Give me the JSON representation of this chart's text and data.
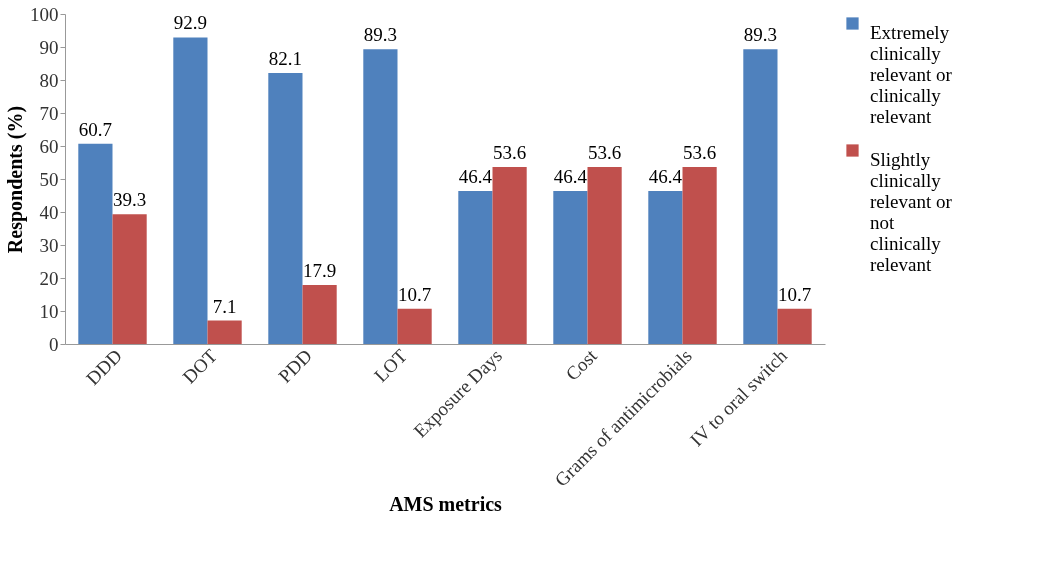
{
  "chart_data": {
    "type": "bar",
    "xlabel": "AMS metrics",
    "ylabel": "Respondents (%)",
    "categories": [
      "DDD",
      "DOT",
      "PDD",
      "LOT",
      "Exposure Days",
      "Cost",
      "Grams of antimicrobials",
      "IV to oral switch"
    ],
    "series": [
      {
        "name": "Extremely clinically relevant or clinically relevant",
        "color": "#4f81bd",
        "values": [
          60.7,
          92.9,
          82.1,
          89.3,
          46.4,
          46.4,
          46.4,
          89.3
        ]
      },
      {
        "name": "Slightly clinically relevant or not clinically relevant",
        "color": "#c0504d",
        "values": [
          39.3,
          7.1,
          17.9,
          10.7,
          53.6,
          53.6,
          53.6,
          10.7
        ]
      }
    ],
    "ylim": [
      0,
      100
    ],
    "yticks": [
      0,
      10,
      20,
      30,
      40,
      50,
      60,
      70,
      80,
      90,
      100
    ],
    "data_labels": true,
    "legend": "right",
    "grid": false
  }
}
